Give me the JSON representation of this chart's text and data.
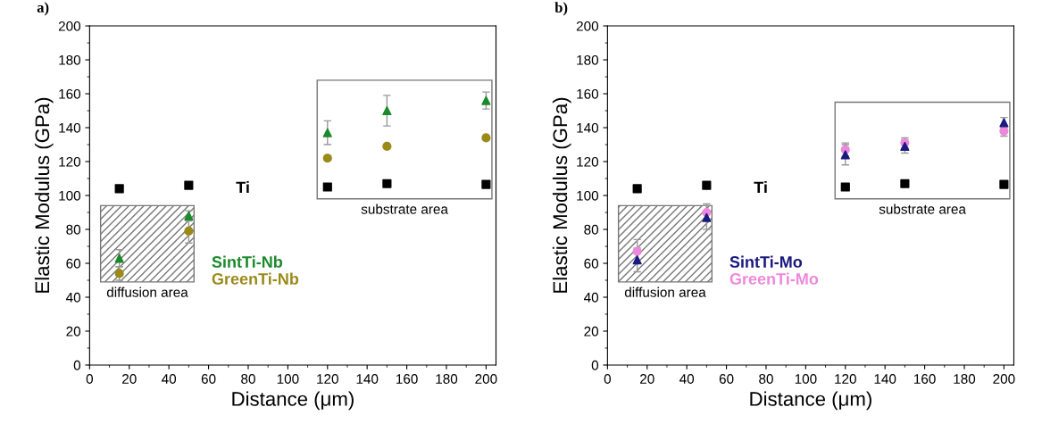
{
  "chart_data": [
    {
      "type": "scatter",
      "title": "a)",
      "xlabel": "Distance (μm)",
      "ylabel": "Elastic Modulus (GPa)",
      "xlim": [
        0,
        205
      ],
      "ylim": [
        0,
        200
      ],
      "xticks": [
        0,
        20,
        40,
        60,
        80,
        100,
        120,
        140,
        160,
        180,
        200
      ],
      "yticks": [
        0,
        20,
        40,
        60,
        80,
        100,
        120,
        140,
        160,
        180,
        200
      ],
      "grid": false,
      "legend": false,
      "x": [
        15,
        50,
        120,
        150,
        200
      ],
      "series": [
        {
          "name": "Ti",
          "color": "#000000",
          "marker": "square",
          "values": [
            104,
            106,
            105,
            107,
            106.5
          ]
        },
        {
          "name": "SintTi-Nb",
          "color": "#1a8a2a",
          "marker": "triangle",
          "values": [
            63,
            88,
            137,
            150,
            156
          ],
          "errors": [
            5,
            3,
            7,
            9,
            5
          ]
        },
        {
          "name": "GreenTi-Nb",
          "color": "#9a8a1a",
          "marker": "circle",
          "values": [
            54,
            79,
            122,
            129,
            134
          ],
          "errors": [
            4,
            7,
            null,
            null,
            null
          ]
        }
      ],
      "annotations": [
        "diffusion area",
        "substrate area"
      ]
    },
    {
      "type": "scatter",
      "title": "b)",
      "xlabel": "Distance (μm)",
      "ylabel": "Elastic Modulus (GPa)",
      "xlim": [
        0,
        205
      ],
      "ylim": [
        0,
        200
      ],
      "xticks": [
        0,
        20,
        40,
        60,
        80,
        100,
        120,
        140,
        160,
        180,
        200
      ],
      "yticks": [
        0,
        20,
        40,
        60,
        80,
        100,
        120,
        140,
        160,
        180,
        200
      ],
      "grid": false,
      "legend": false,
      "x": [
        15,
        50,
        120,
        150,
        200
      ],
      "series": [
        {
          "name": "Ti",
          "color": "#000000",
          "marker": "square",
          "values": [
            104,
            106,
            105,
            107,
            106.5
          ]
        },
        {
          "name": "GreenTi-Mo",
          "color": "#ee88dd",
          "marker": "circle",
          "values": [
            67,
            90,
            127,
            131,
            138
          ],
          "errors": [
            7,
            5,
            4,
            3,
            3
          ]
        },
        {
          "name": "SintTi-Mo",
          "color": "#1a1a80",
          "marker": "triangle",
          "values": [
            62,
            87,
            124,
            129,
            143
          ],
          "errors": [
            7,
            7,
            6,
            4,
            3
          ]
        }
      ],
      "annotations": [
        "diffusion area",
        "substrate area"
      ]
    }
  ]
}
